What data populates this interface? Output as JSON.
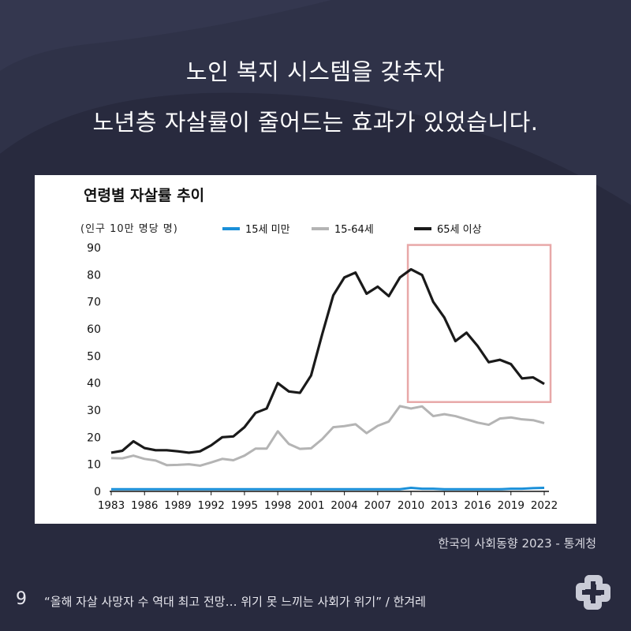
{
  "headline": {
    "line1": "노인 복지 시스템을 갖추자",
    "line2": "노년층 자살률이 줄어드는 효과가 있었습니다."
  },
  "source_text": "한국의 사회동향 2023 - 통계청",
  "page_number": "9",
  "footnote": "“올해 자살 사망자 수 역대 최고 전망… 위기 못 느끼는 사회가 위기” / 한겨레",
  "colors": {
    "background": "#282a3e",
    "series_under15": "#1a8fd8",
    "series_15_64": "#b4b4b4",
    "series_65plus": "#1a1a1a",
    "highlight_box": "#e8a8a8"
  },
  "chart_data": {
    "type": "line",
    "title": "연령별 자살률 추이",
    "subtitle": "(인구 10만 명당 명)",
    "ylim": [
      0,
      90
    ],
    "yticks": [
      "0",
      "10",
      "20",
      "30",
      "40",
      "50",
      "60",
      "70",
      "80",
      "90"
    ],
    "xlim": [
      1983,
      2022
    ],
    "xticks": [
      "1983",
      "1986",
      "1989",
      "1992",
      "1995",
      "1998",
      "2001",
      "2004",
      "2007",
      "2010",
      "2013",
      "2016",
      "2019",
      "2022"
    ],
    "legend_position": "top",
    "highlight_range": {
      "x": [
        2010,
        2022
      ],
      "y": [
        33,
        91
      ]
    },
    "x": [
      1983,
      1984,
      1985,
      1986,
      1987,
      1988,
      1989,
      1990,
      1991,
      1992,
      1993,
      1994,
      1995,
      1996,
      1997,
      1998,
      1999,
      2000,
      2001,
      2002,
      2003,
      2004,
      2005,
      2006,
      2007,
      2008,
      2009,
      2010,
      2011,
      2012,
      2013,
      2014,
      2015,
      2016,
      2017,
      2018,
      2019,
      2020,
      2021,
      2022
    ],
    "series": [
      {
        "name": "15세 미만",
        "values": [
          0.8,
          0.8,
          0.8,
          0.8,
          0.8,
          0.8,
          0.8,
          0.8,
          0.8,
          0.8,
          0.8,
          0.8,
          0.8,
          0.8,
          0.8,
          0.8,
          0.8,
          0.8,
          0.8,
          0.8,
          0.8,
          0.8,
          0.8,
          0.8,
          0.8,
          0.8,
          0.8,
          1.3,
          1.0,
          1.0,
          0.8,
          0.8,
          0.8,
          0.8,
          0.8,
          0.8,
          1.0,
          1.0,
          1.2,
          1.3
        ]
      },
      {
        "name": "15-64세",
        "values": [
          12.3,
          12.2,
          13.2,
          12.0,
          11.4,
          9.7,
          9.8,
          10.0,
          9.5,
          10.7,
          12.0,
          11.5,
          13.2,
          15.8,
          15.8,
          22.2,
          17.5,
          15.7,
          15.9,
          19.3,
          23.7,
          24.1,
          24.8,
          21.5,
          24.2,
          25.8,
          31.5,
          30.6,
          31.4,
          27.8,
          28.5,
          27.8,
          26.6,
          25.4,
          24.6,
          26.9,
          27.3,
          26.6,
          26.3,
          25.2
        ]
      },
      {
        "name": "65세 이상",
        "values": [
          14.3,
          15.0,
          18.5,
          16.0,
          15.2,
          15.2,
          14.8,
          14.3,
          14.8,
          17.0,
          20.0,
          20.3,
          23.7,
          29.0,
          30.6,
          40.0,
          36.9,
          36.4,
          42.8,
          58.0,
          72.4,
          79.0,
          80.8,
          73.0,
          75.6,
          72.1,
          79.0,
          82.0,
          79.9,
          70.0,
          64.2,
          55.5,
          58.6,
          53.7,
          47.7,
          48.6,
          47.0,
          41.7,
          42.1,
          39.7
        ]
      }
    ]
  }
}
